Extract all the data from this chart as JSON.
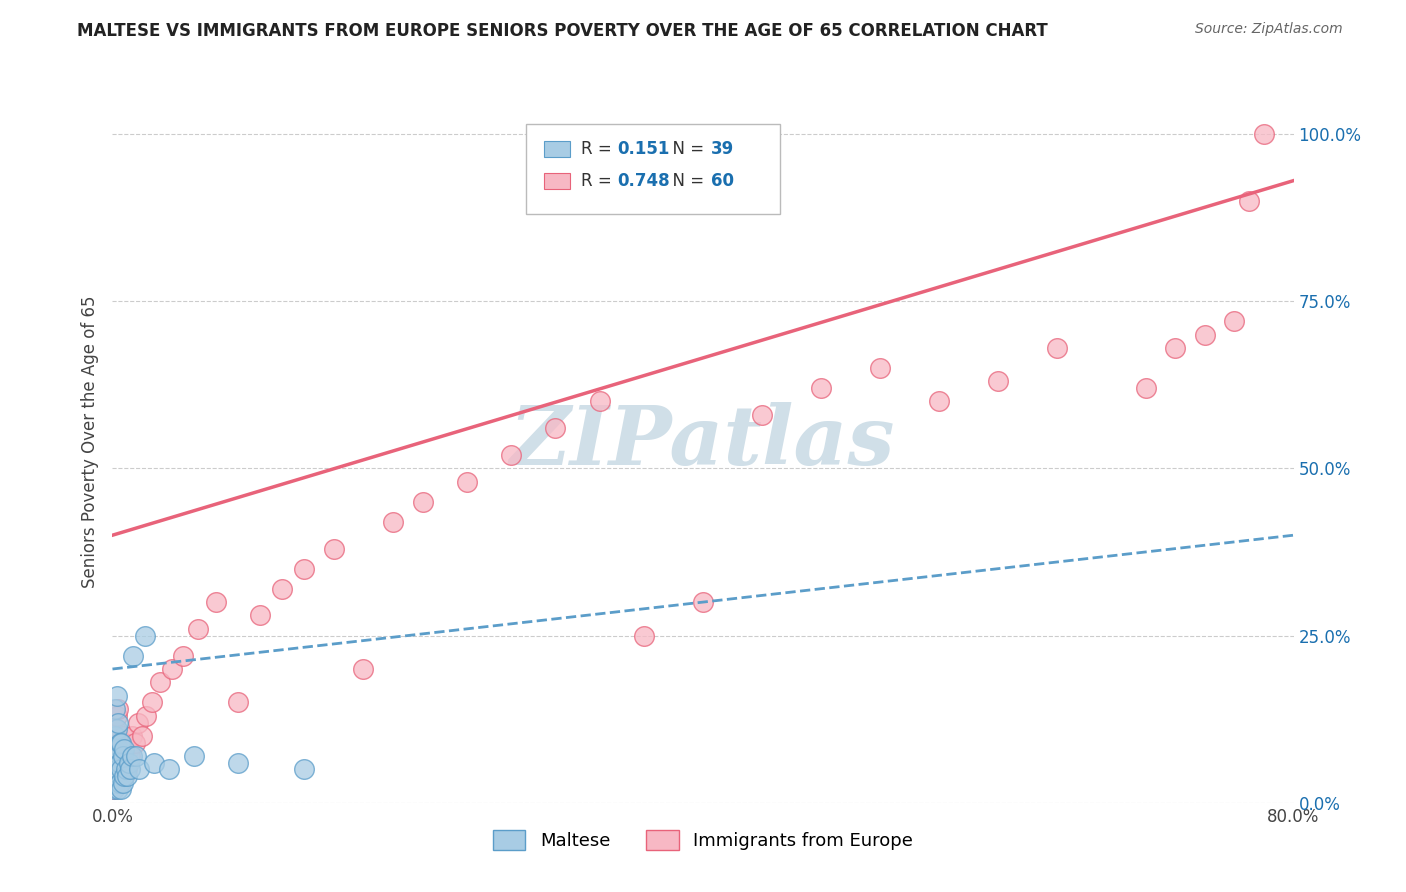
{
  "title": "MALTESE VS IMMIGRANTS FROM EUROPE SENIORS POVERTY OVER THE AGE OF 65 CORRELATION CHART",
  "source": "Source: ZipAtlas.com",
  "ylabel": "Seniors Poverty Over the Age of 65",
  "xmin": 0.0,
  "xmax": 0.8,
  "ymin": 0.0,
  "ymax": 1.08,
  "y_tick_vals_right": [
    0.0,
    0.25,
    0.5,
    0.75,
    1.0
  ],
  "y_tick_labels_right": [
    "0.0%",
    "25.0%",
    "50.0%",
    "75.0%",
    "100.0%"
  ],
  "series1_color": "#a8cce4",
  "series1_edge": "#5b9dc9",
  "series2_color": "#f7b8c4",
  "series2_edge": "#e8637a",
  "series1_label": "Maltese",
  "series2_label": "Immigrants from Europe",
  "series1_R": "0.151",
  "series1_N": "39",
  "series2_R": "0.748",
  "series2_N": "60",
  "legend_color": "#1a6faf",
  "watermark": "ZIPatlas",
  "watermark_color": "#d0dfe8",
  "trendline1_color": "#5b9dc9",
  "trendline2_color": "#e8637a",
  "grid_color": "#cccccc",
  "scatter1_x": [
    0.001,
    0.001,
    0.001,
    0.002,
    0.002,
    0.002,
    0.002,
    0.003,
    0.003,
    0.003,
    0.003,
    0.004,
    0.004,
    0.004,
    0.004,
    0.005,
    0.005,
    0.005,
    0.006,
    0.006,
    0.006,
    0.007,
    0.007,
    0.008,
    0.008,
    0.009,
    0.01,
    0.011,
    0.012,
    0.013,
    0.014,
    0.016,
    0.018,
    0.022,
    0.028,
    0.038,
    0.055,
    0.085,
    0.13
  ],
  "scatter1_y": [
    0.02,
    0.05,
    0.08,
    0.03,
    0.06,
    0.1,
    0.14,
    0.04,
    0.07,
    0.11,
    0.16,
    0.02,
    0.05,
    0.08,
    0.12,
    0.03,
    0.06,
    0.09,
    0.02,
    0.05,
    0.09,
    0.03,
    0.07,
    0.04,
    0.08,
    0.05,
    0.04,
    0.06,
    0.05,
    0.07,
    0.22,
    0.07,
    0.05,
    0.25,
    0.06,
    0.05,
    0.07,
    0.06,
    0.05
  ],
  "scatter2_x": [
    0.001,
    0.001,
    0.002,
    0.002,
    0.002,
    0.003,
    0.003,
    0.003,
    0.004,
    0.004,
    0.004,
    0.005,
    0.005,
    0.006,
    0.006,
    0.007,
    0.007,
    0.008,
    0.008,
    0.009,
    0.01,
    0.011,
    0.012,
    0.013,
    0.015,
    0.017,
    0.02,
    0.023,
    0.027,
    0.032,
    0.04,
    0.048,
    0.058,
    0.07,
    0.085,
    0.1,
    0.115,
    0.13,
    0.15,
    0.17,
    0.19,
    0.21,
    0.24,
    0.27,
    0.3,
    0.33,
    0.36,
    0.4,
    0.44,
    0.48,
    0.52,
    0.56,
    0.6,
    0.64,
    0.7,
    0.72,
    0.74,
    0.76,
    0.77,
    0.78
  ],
  "scatter2_y": [
    0.02,
    0.06,
    0.03,
    0.07,
    0.11,
    0.04,
    0.08,
    0.13,
    0.05,
    0.09,
    0.14,
    0.03,
    0.08,
    0.04,
    0.09,
    0.05,
    0.1,
    0.04,
    0.09,
    0.06,
    0.05,
    0.08,
    0.07,
    0.1,
    0.09,
    0.12,
    0.1,
    0.13,
    0.15,
    0.18,
    0.2,
    0.22,
    0.26,
    0.3,
    0.15,
    0.28,
    0.32,
    0.35,
    0.38,
    0.2,
    0.42,
    0.45,
    0.48,
    0.52,
    0.56,
    0.6,
    0.25,
    0.3,
    0.58,
    0.62,
    0.65,
    0.6,
    0.63,
    0.68,
    0.62,
    0.68,
    0.7,
    0.72,
    0.9,
    1.0
  ],
  "trendline1_x0": 0.0,
  "trendline1_x1": 0.8,
  "trendline1_y0": 0.2,
  "trendline1_y1": 0.4,
  "trendline2_x0": 0.0,
  "trendline2_x1": 0.8,
  "trendline2_y0": 0.4,
  "trendline2_y1": 0.93
}
